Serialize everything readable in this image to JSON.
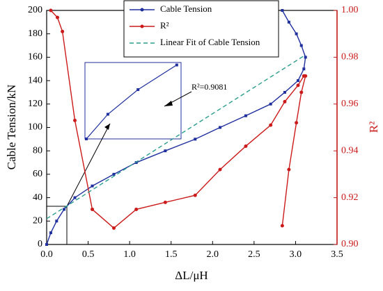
{
  "chart_data": {
    "type": "line",
    "xlabel": "ΔL/μH",
    "ylabel": "Cable Tension/kN",
    "y2label": "R²",
    "xlim": [
      0,
      3.5
    ],
    "ylim": [
      0,
      200
    ],
    "y2lim": [
      0.9,
      1.0
    ],
    "xticks": [
      {
        "value": 0,
        "label": "0.0"
      },
      0.5,
      {
        "value": 1,
        "label": "1.0"
      },
      1.5,
      {
        "value": 2,
        "label": "2.0"
      },
      2.5,
      {
        "value": 3,
        "label": "3.0"
      },
      3.5
    ],
    "yticks": [
      0,
      20,
      40,
      60,
      80,
      100,
      120,
      140,
      160,
      180,
      200
    ],
    "y2ticks": [
      {
        "value": 0.9,
        "label": "0.90"
      },
      0.92,
      0.94,
      0.96,
      0.98,
      {
        "value": 1.0,
        "label": "1.00"
      }
    ],
    "series": [
      {
        "name": "Cable Tension",
        "color": "#1f2f9e",
        "marker": "square",
        "x": [
          0,
          0.05,
          0.12,
          0.21,
          0.34,
          0.55,
          0.81,
          1.08,
          1.43,
          1.79,
          2.09,
          2.4,
          2.7,
          2.87,
          3.03,
          3.1,
          3.12,
          3.07,
          3.01,
          2.92,
          2.84
        ],
        "values": [
          0,
          10,
          20,
          30,
          40,
          50,
          60,
          70,
          80,
          90,
          100,
          110,
          120,
          130,
          140,
          150,
          160,
          170,
          180,
          190,
          200
        ]
      },
      {
        "name": "R²",
        "color": "#cc1a1a",
        "marker": "circle",
        "axis": "y2",
        "x": [
          0.05,
          0.13,
          0.19,
          0.34,
          0.55,
          0.81,
          1.08,
          1.43,
          1.79,
          2.09,
          2.4,
          2.7,
          2.87,
          3.03,
          3.1,
          3.12,
          3.07,
          3.01,
          2.92,
          2.84
        ],
        "values": [
          1.0,
          0.997,
          0.991,
          0.953,
          0.915,
          0.907,
          0.915,
          0.918,
          0.921,
          0.932,
          0.942,
          0.951,
          0.961,
          0.968,
          0.972,
          0.972,
          0.965,
          0.952,
          0.932,
          0.908
        ]
      },
      {
        "name": "Linear Fit of Cable Tension",
        "color": "#2a9d8f",
        "dashed": true,
        "x": [
          0,
          3.12
        ],
        "values": [
          22,
          162
        ]
      }
    ],
    "annotation": "R²=0.9081"
  }
}
